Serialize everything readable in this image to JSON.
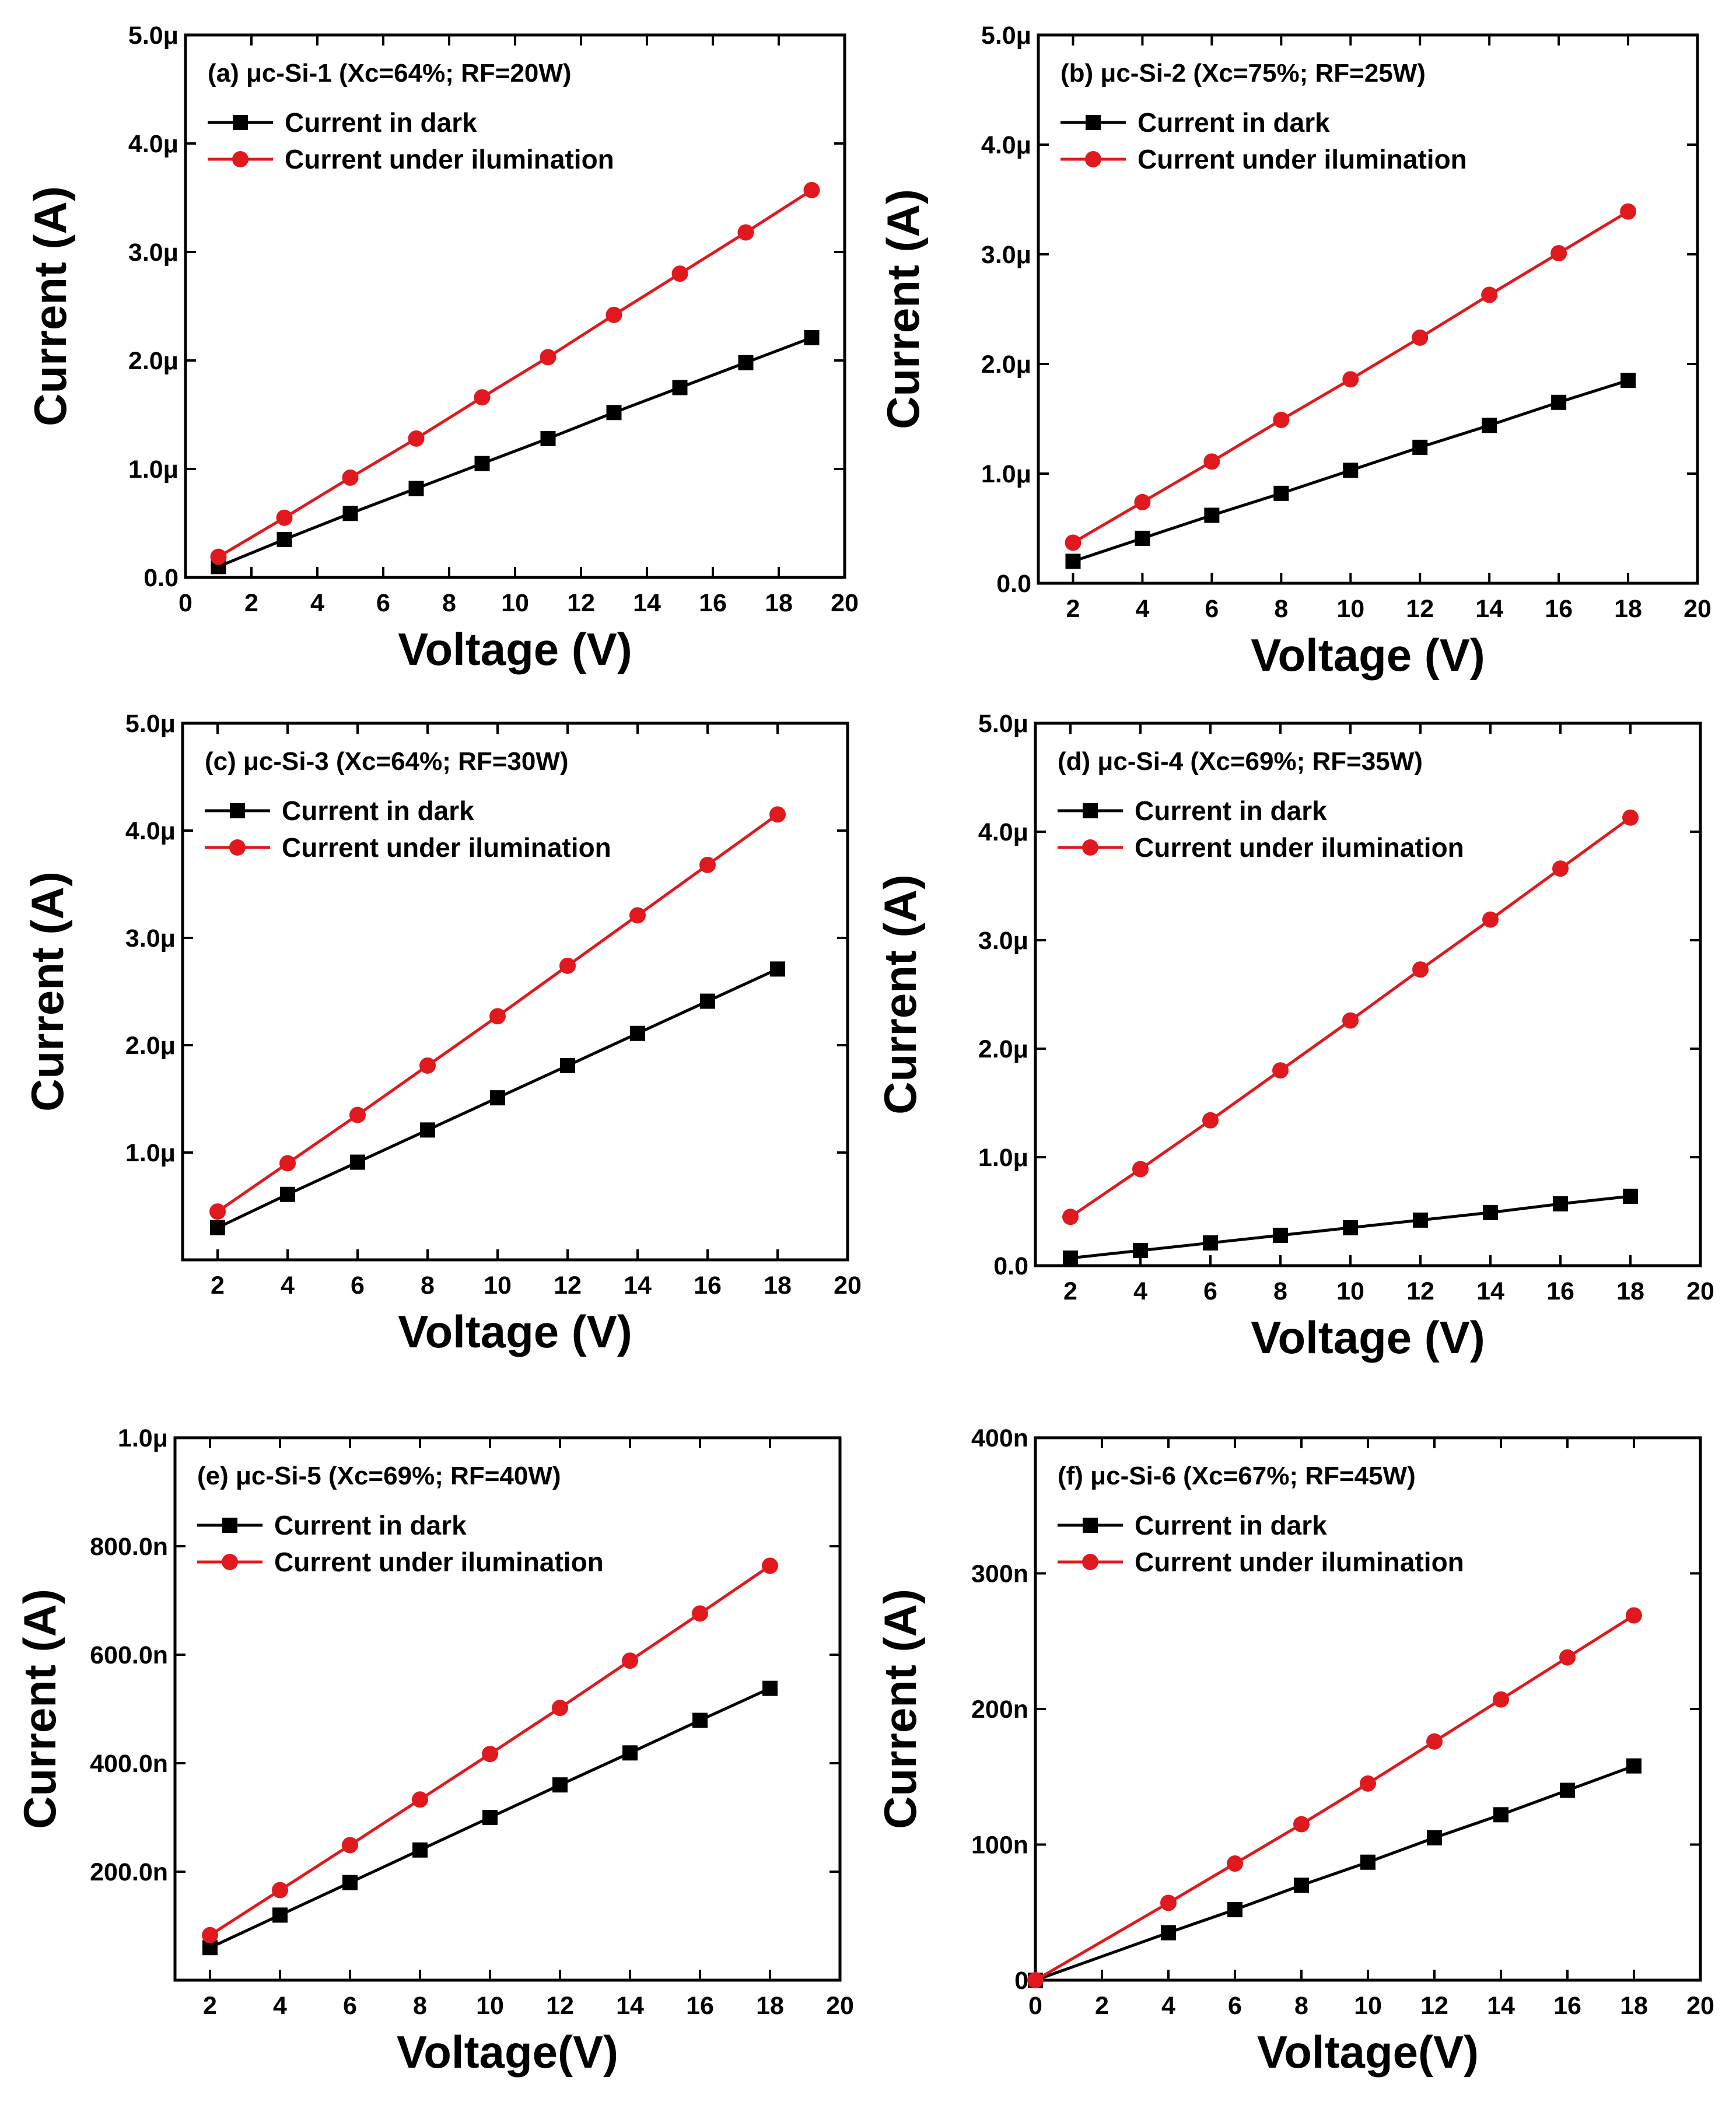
{
  "colors": {
    "dark_series": "#000000",
    "illuminated_series": "#e0191e",
    "axes": "#000000"
  },
  "chart_data": [
    {
      "type": "line",
      "panel_label": "(a)",
      "title": "μc-Si-1 (Xc=64%; RF=20W)",
      "xlabel": "Voltage (V)",
      "ylabel": "Current (A)",
      "xlim": [
        0,
        20
      ],
      "ylim": [
        0,
        5.0
      ],
      "unit": "μ",
      "xticks": [
        0,
        2,
        4,
        6,
        8,
        10,
        12,
        14,
        16,
        18,
        20
      ],
      "xtick_labels": [
        "0",
        "2",
        "4",
        "6",
        "8",
        "10",
        "12",
        "14",
        "16",
        "18",
        "20"
      ],
      "yticks": [
        0,
        1,
        2,
        3,
        4,
        5
      ],
      "ytick_labels": [
        "0.0",
        "1.0μ",
        "2.0μ",
        "3.0μ",
        "4.0μ",
        "5.0μ"
      ],
      "x": [
        1,
        3,
        5,
        7,
        9,
        11,
        13,
        15,
        17,
        19
      ],
      "series": [
        {
          "name": "Current in dark",
          "marker": "square",
          "color": "#000000",
          "values": [
            0.1,
            0.35,
            0.59,
            0.82,
            1.05,
            1.28,
            1.52,
            1.75,
            1.98,
            2.21
          ]
        },
        {
          "name": "Current  under ilumination",
          "marker": "circle",
          "color": "#e0191e",
          "values": [
            0.19,
            0.55,
            0.92,
            1.28,
            1.66,
            2.03,
            2.42,
            2.8,
            3.18,
            3.57
          ]
        }
      ],
      "legend_position": "top-left",
      "grid": false
    },
    {
      "type": "line",
      "panel_label": "(b)",
      "title": "μc-Si-2 (Xc=75%; RF=25W)",
      "xlabel": "Voltage (V)",
      "ylabel": "Current (A)",
      "xlim": [
        1,
        20
      ],
      "ylim": [
        0,
        5.0
      ],
      "unit": "μ",
      "xticks": [
        2,
        4,
        6,
        8,
        10,
        12,
        14,
        16,
        18,
        20
      ],
      "xtick_labels": [
        "2",
        "4",
        "6",
        "8",
        "10",
        "12",
        "14",
        "16",
        "18",
        "20"
      ],
      "yticks": [
        0,
        1,
        2,
        3,
        4,
        5
      ],
      "ytick_labels": [
        "0.0",
        "1.0μ",
        "2.0μ",
        "3.0μ",
        "4.0μ",
        "5.0μ"
      ],
      "x": [
        2,
        4,
        6,
        8,
        10,
        12,
        14,
        16,
        18
      ],
      "series": [
        {
          "name": "Current in dark",
          "marker": "square",
          "color": "#000000",
          "values": [
            0.2,
            0.41,
            0.62,
            0.82,
            1.03,
            1.24,
            1.44,
            1.65,
            1.85
          ]
        },
        {
          "name": "Current  under ilumination",
          "marker": "circle",
          "color": "#e0191e",
          "values": [
            0.37,
            0.74,
            1.11,
            1.49,
            1.86,
            2.24,
            2.63,
            3.01,
            3.39
          ]
        }
      ],
      "legend_position": "top-left",
      "grid": false
    },
    {
      "type": "line",
      "panel_label": "(c)",
      "title": "μc-Si-3 (Xc=64%; RF=30W)",
      "xlabel": "Voltage (V)",
      "ylabel": "Current (A)",
      "xlim": [
        1,
        20
      ],
      "ylim": [
        0,
        5.0
      ],
      "unit": "μ",
      "xticks": [
        2,
        4,
        6,
        8,
        10,
        12,
        14,
        16,
        18,
        20
      ],
      "xtick_labels": [
        "2",
        "4",
        "6",
        "8",
        "10",
        "12",
        "14",
        "16",
        "18",
        "20"
      ],
      "yticks": [
        1,
        2,
        3,
        4,
        5
      ],
      "ytick_labels": [
        "1.0μ",
        "2.0μ",
        "3.0μ",
        "4.0μ",
        "5.0μ"
      ],
      "x": [
        2,
        4,
        6,
        8,
        10,
        12,
        14,
        16,
        18
      ],
      "series": [
        {
          "name": "Current in dark",
          "marker": "square",
          "color": "#000000",
          "values": [
            0.3,
            0.61,
            0.91,
            1.21,
            1.51,
            1.81,
            2.11,
            2.41,
            2.71
          ]
        },
        {
          "name": "Current  under ilumination",
          "marker": "circle",
          "color": "#e0191e",
          "values": [
            0.45,
            0.9,
            1.35,
            1.81,
            2.27,
            2.74,
            3.21,
            3.68,
            4.15
          ]
        }
      ],
      "legend_position": "top-left",
      "grid": false
    },
    {
      "type": "line",
      "panel_label": "(d)",
      "title": "μc-Si-4 (Xc=69%; RF=35W)",
      "xlabel": "Voltage (V)",
      "ylabel": "Current (A)",
      "xlim": [
        1,
        20
      ],
      "ylim": [
        0,
        5.0
      ],
      "unit": "μ",
      "xticks": [
        2,
        4,
        6,
        8,
        10,
        12,
        14,
        16,
        18,
        20
      ],
      "xtick_labels": [
        "2",
        "4",
        "6",
        "8",
        "10",
        "12",
        "14",
        "16",
        "18",
        "20"
      ],
      "yticks": [
        0,
        1,
        2,
        3,
        4,
        5
      ],
      "ytick_labels": [
        "0.0",
        "1.0μ",
        "2.0μ",
        "3.0μ",
        "4.0μ",
        "5.0μ"
      ],
      "x": [
        2,
        4,
        6,
        8,
        10,
        12,
        14,
        16,
        18
      ],
      "series": [
        {
          "name": "Current in dark",
          "marker": "square",
          "color": "#000000",
          "values": [
            0.07,
            0.14,
            0.21,
            0.28,
            0.35,
            0.42,
            0.49,
            0.57,
            0.64
          ]
        },
        {
          "name": "Current  under ilumination",
          "marker": "circle",
          "color": "#e0191e",
          "values": [
            0.45,
            0.89,
            1.34,
            1.8,
            2.26,
            2.73,
            3.19,
            3.66,
            4.13
          ]
        }
      ],
      "legend_position": "top-left",
      "grid": false
    },
    {
      "type": "line",
      "panel_label": "(e)",
      "title": "μc-Si-5 (Xc=69%; RF=40W)",
      "xlabel": "Voltage(V)",
      "ylabel": "Current (A)",
      "xlim": [
        1,
        20
      ],
      "ylim": [
        0,
        1000
      ],
      "unit": "n",
      "xticks": [
        2,
        4,
        6,
        8,
        10,
        12,
        14,
        16,
        18,
        20
      ],
      "xtick_labels": [
        "2",
        "4",
        "6",
        "8",
        "10",
        "12",
        "14",
        "16",
        "18",
        "20"
      ],
      "yticks": [
        200,
        400,
        600,
        800,
        1000
      ],
      "ytick_labels": [
        "200.0n",
        "400.0n",
        "600.0n",
        "800.0n",
        "1.0μ"
      ],
      "x": [
        2,
        4,
        6,
        8,
        10,
        12,
        14,
        16,
        18
      ],
      "series": [
        {
          "name": "Current in dark",
          "marker": "square",
          "color": "#000000",
          "values": [
            60,
            120,
            180,
            240,
            300,
            360,
            419,
            479,
            538
          ]
        },
        {
          "name": "Current  under ilumination",
          "marker": "circle",
          "color": "#e0191e",
          "values": [
            83,
            166,
            249,
            333,
            417,
            502,
            589,
            676,
            764
          ]
        }
      ],
      "legend_position": "top-left",
      "grid": false
    },
    {
      "type": "line",
      "panel_label": "(f)",
      "title": "μc-Si-6 (Xc=67%; RF=45W)",
      "xlabel": "Voltage(V)",
      "ylabel": "Current (A)",
      "xlim": [
        0,
        20
      ],
      "ylim": [
        0,
        400
      ],
      "unit": "n",
      "xticks": [
        0,
        2,
        4,
        6,
        8,
        10,
        12,
        14,
        16,
        18,
        20
      ],
      "xtick_labels": [
        "0",
        "2",
        "4",
        "6",
        "8",
        "10",
        "12",
        "14",
        "16",
        "18",
        "20"
      ],
      "yticks": [
        0,
        100,
        200,
        300,
        400
      ],
      "ytick_labels": [
        "0",
        "100n",
        "200n",
        "300n",
        "400n"
      ],
      "x": [
        0,
        4,
        6,
        8,
        10,
        12,
        14,
        16,
        18
      ],
      "series": [
        {
          "name": "Current in dark",
          "marker": "square",
          "color": "#000000",
          "values": [
            0,
            35,
            52,
            70,
            87,
            105,
            122,
            140,
            158
          ]
        },
        {
          "name": "Current  under ilumination",
          "marker": "circle",
          "color": "#e0191e",
          "values": [
            0,
            57,
            86,
            115,
            145,
            176,
            207,
            238,
            269
          ]
        }
      ],
      "legend_position": "top-left",
      "grid": false
    }
  ]
}
